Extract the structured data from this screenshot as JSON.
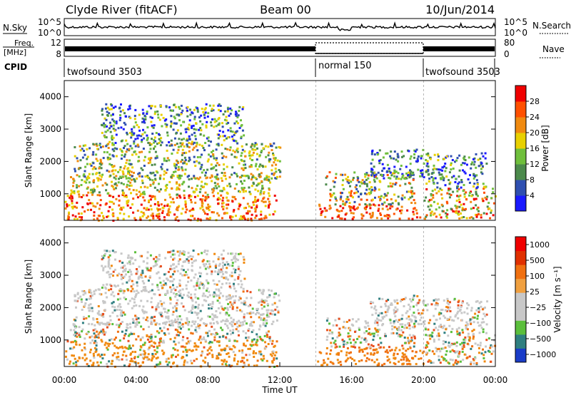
{
  "header": {
    "site": "Clyde River (fitACF)",
    "beam": "Beam 00",
    "date": "10/Jun/2014"
  },
  "nsky_panel": {
    "label": "N.Sky",
    "ticks": [
      "10^5",
      "10^0"
    ],
    "right_label": "N.Search",
    "right_ticks": [
      "10^5",
      "10^0"
    ]
  },
  "freq_panel": {
    "label_top": "Freq.",
    "label_bottom": "[MHz]",
    "ticks": [
      "12",
      "8"
    ],
    "right_label": "Nave",
    "right_ticks": [
      "80",
      "0"
    ]
  },
  "cpid_panel": {
    "label": "CPID",
    "modes": [
      {
        "name": "twofsound 3503",
        "start_hour": 0,
        "end_hour": 14
      },
      {
        "name": "normal 150",
        "start_hour": 14,
        "end_hour": 20
      },
      {
        "name": "twofsound 3503",
        "start_hour": 20,
        "end_hour": 24
      }
    ]
  },
  "chart_data": [
    {
      "type": "heatmap",
      "name": "power",
      "xlabel": "",
      "ylabel": "Slant Range [km]",
      "xlim_hours": [
        0,
        24
      ],
      "ylim_km": [
        180,
        4500
      ],
      "y_ticks": [
        "1000",
        "2000",
        "3000",
        "4000"
      ],
      "colorbar": {
        "label": "Power [dB]",
        "ticks": [
          "4",
          "8",
          "12",
          "16",
          "20",
          "24",
          "28"
        ],
        "colors": [
          "#1a1aff",
          "#2f4fb0",
          "#4c8a4c",
          "#6fbf3c",
          "#e8d000",
          "#f08a10",
          "#ff5000",
          "#f00000"
        ]
      }
    },
    {
      "type": "heatmap",
      "name": "velocity",
      "xlabel": "Time UT",
      "ylabel": "Slant Range [km]",
      "xlim_hours": [
        0,
        24
      ],
      "ylim_km": [
        180,
        4500
      ],
      "x_ticks": [
        "00:00",
        "04:00",
        "08:00",
        "12:00",
        "16:00",
        "20:00",
        "00:00"
      ],
      "y_ticks": [
        "1000",
        "2000",
        "3000",
        "4000"
      ],
      "colorbar": {
        "label": "Velocity [m s⁻¹]",
        "ticks": [
          "1000",
          "500",
          "100",
          "25",
          "−25",
          "−100",
          "−500",
          "−1000"
        ],
        "colors": [
          "#1a3cc8",
          "#2f7f80",
          "#5bbf3c",
          "#c8c8c8",
          "#c8c8c8",
          "#f0a040",
          "#f07010",
          "#e03000",
          "#f00000"
        ]
      }
    }
  ]
}
